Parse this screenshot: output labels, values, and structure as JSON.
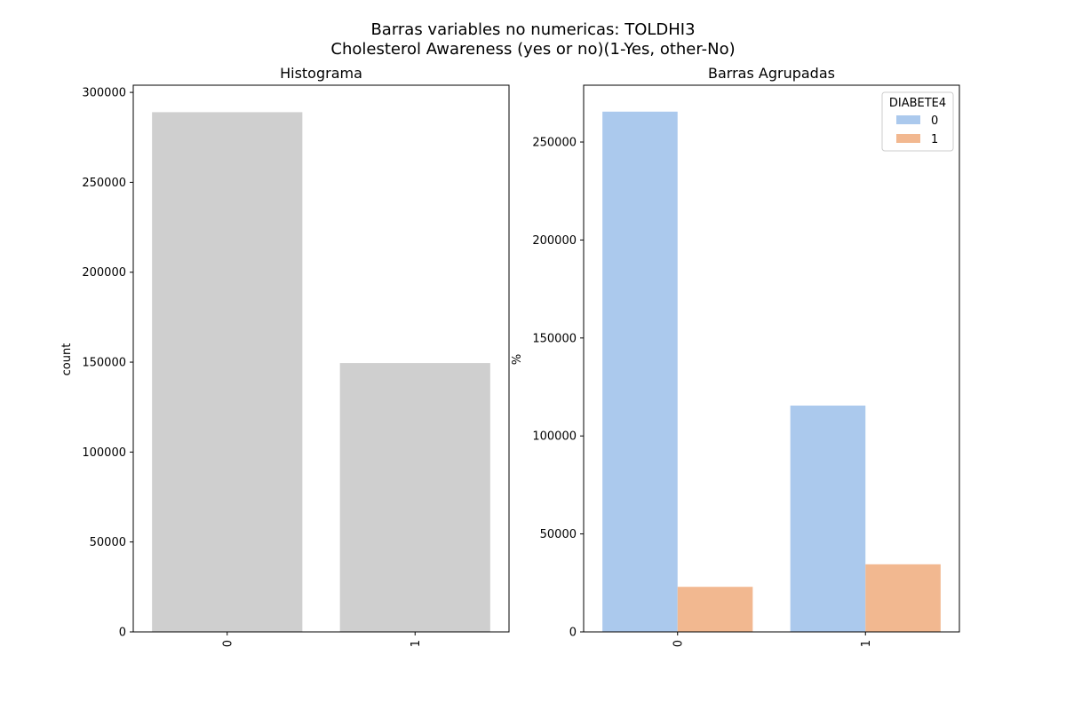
{
  "figure": {
    "suptitle_line1": "Barras variables no numericas: TOLDHI3",
    "suptitle_line2": "Cholesterol Awareness (yes or no)(1-Yes, other-No)"
  },
  "chart_data": [
    {
      "type": "bar",
      "title": "Histograma",
      "xlabel": "",
      "ylabel": "count",
      "categories": [
        "0",
        "1"
      ],
      "values": [
        289000,
        149500
      ],
      "ylim": [
        0,
        304000
      ],
      "yticks": [
        0,
        50000,
        100000,
        150000,
        200000,
        250000,
        300000
      ],
      "color": "#cfcfcf"
    },
    {
      "type": "bar",
      "title": "Barras Agrupadas",
      "xlabel": "",
      "ylabel": "%",
      "categories": [
        "0",
        "1"
      ],
      "legend_title": "DIABETE4",
      "legend_position": "top-right",
      "series": [
        {
          "name": "0",
          "values": [
            265500,
            115500
          ],
          "color": "#abc9ed"
        },
        {
          "name": "1",
          "values": [
            23000,
            34500
          ],
          "color": "#f2b890"
        }
      ],
      "ylim": [
        0,
        279000
      ],
      "yticks": [
        0,
        50000,
        100000,
        150000,
        200000,
        250000
      ]
    }
  ]
}
